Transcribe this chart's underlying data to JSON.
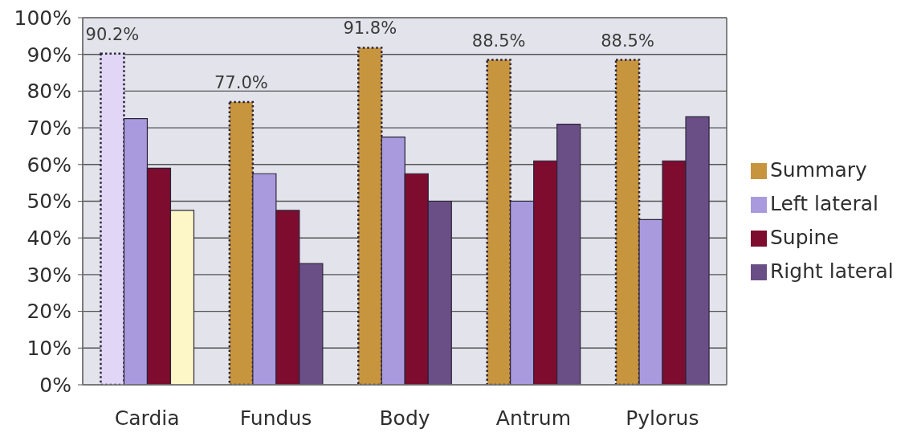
{
  "chart_data": {
    "type": "bar",
    "categories": [
      "Cardia",
      "Fundus",
      "Body",
      "Antrum",
      "Pylorus"
    ],
    "series": [
      {
        "name": "Summary",
        "color": "#c8953f",
        "colors": [
          "#e2d6f7",
          "#c8953f",
          "#c8953f",
          "#c8953f",
          "#c8953f"
        ],
        "line_style": "dotted",
        "values": [
          90.2,
          77.0,
          91.8,
          88.5,
          88.5
        ],
        "value_labels": [
          "90.2%",
          "77.0%",
          "91.8%",
          "88.5%",
          "88.5%"
        ]
      },
      {
        "name": "Left lateral",
        "color": "#a99ade",
        "values": [
          72.5,
          57.5,
          67.5,
          50,
          45
        ]
      },
      {
        "name": "Supine",
        "color": "#7d0c2f",
        "values": [
          59,
          47.5,
          57.5,
          61,
          61
        ]
      },
      {
        "name": "Right lateral",
        "color": "#6a4f87",
        "colors": [
          "#fdf6c6",
          "#6a4f87",
          "#6a4f87",
          "#6a4f87",
          "#6a4f87"
        ],
        "values": [
          47.5,
          33,
          50,
          71,
          73
        ]
      }
    ],
    "ylim": [
      0,
      100
    ],
    "yticks": [
      {
        "value": 0,
        "label": "0%"
      },
      {
        "value": 10,
        "label": "10%"
      },
      {
        "value": 20,
        "label": "20%"
      },
      {
        "value": 30,
        "label": "30%"
      },
      {
        "value": 40,
        "label": "40%"
      },
      {
        "value": 50,
        "label": "50%"
      },
      {
        "value": 60,
        "label": "60%"
      },
      {
        "value": 70,
        "label": "70%"
      },
      {
        "value": 80,
        "label": "80%"
      },
      {
        "value": 90,
        "label": "90%"
      },
      {
        "value": 100,
        "label": "100%"
      }
    ],
    "grid": "y",
    "legend": "right"
  }
}
